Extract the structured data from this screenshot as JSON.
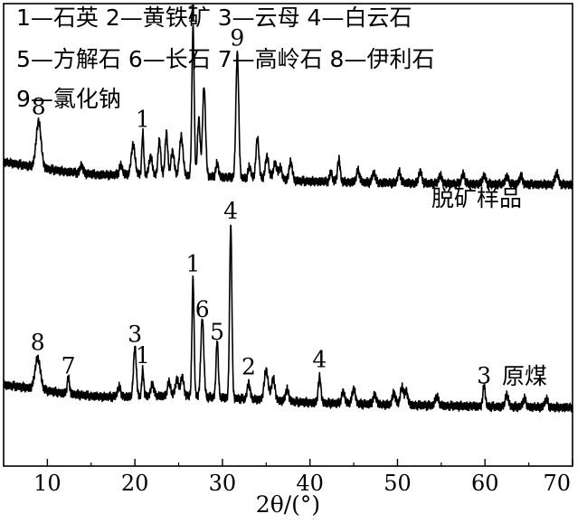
{
  "legend": {
    "lines": [
      "1—石英  2—黄铁矿  3—云母  4—白云石",
      "5—方解石  6—长石  7—高岭石  8—伊利石",
      "9—氯化钠"
    ]
  },
  "chart_data": {
    "type": "line",
    "xlabel": "2θ/(°)",
    "xlim": [
      5,
      70
    ],
    "xticks": [
      10,
      20,
      30,
      40,
      50,
      60,
      70
    ],
    "grid": false,
    "y_axis_ticks_labeled": false,
    "series": [
      {
        "name": "脱矿样品",
        "baseline": [
          [
            5,
            0.58
          ],
          [
            8,
            0.5
          ],
          [
            12,
            0.4
          ],
          [
            16,
            0.34
          ],
          [
            20,
            0.34
          ],
          [
            25,
            0.33
          ],
          [
            30,
            0.3
          ],
          [
            35,
            0.26
          ],
          [
            40,
            0.22
          ],
          [
            50,
            0.19
          ],
          [
            60,
            0.17
          ],
          [
            70,
            0.16
          ]
        ],
        "peaks": [
          {
            "x": 9.0,
            "h": 0.85,
            "w": 0.28,
            "label": "8"
          },
          {
            "x": 13.9,
            "h": 0.16,
            "w": 0.15
          },
          {
            "x": 18.4,
            "h": 0.18,
            "w": 0.18
          },
          {
            "x": 19.8,
            "h": 0.55,
            "w": 0.22
          },
          {
            "x": 20.9,
            "h": 0.78,
            "w": 0.11,
            "label": "1"
          },
          {
            "x": 21.8,
            "h": 0.35,
            "w": 0.18
          },
          {
            "x": 22.8,
            "h": 0.65,
            "w": 0.15
          },
          {
            "x": 23.6,
            "h": 0.78,
            "w": 0.15
          },
          {
            "x": 24.3,
            "h": 0.45,
            "w": 0.18
          },
          {
            "x": 25.3,
            "h": 0.72,
            "w": 0.2
          },
          {
            "x": 26.64,
            "h": 2.75,
            "w": 0.13,
            "label": "1"
          },
          {
            "x": 27.3,
            "h": 1.05,
            "w": 0.15
          },
          {
            "x": 27.9,
            "h": 1.65,
            "w": 0.17
          },
          {
            "x": 29.4,
            "h": 0.25,
            "w": 0.15
          },
          {
            "x": 31.7,
            "h": 2.3,
            "w": 0.16,
            "label": "9"
          },
          {
            "x": 33.1,
            "h": 0.22,
            "w": 0.16
          },
          {
            "x": 34.0,
            "h": 0.75,
            "w": 0.17
          },
          {
            "x": 35.1,
            "h": 0.42,
            "w": 0.2
          },
          {
            "x": 36.0,
            "h": 0.3,
            "w": 0.2
          },
          {
            "x": 36.6,
            "h": 0.22,
            "w": 0.2
          },
          {
            "x": 37.8,
            "h": 0.35,
            "w": 0.18
          },
          {
            "x": 42.4,
            "h": 0.18,
            "w": 0.15
          },
          {
            "x": 43.3,
            "h": 0.42,
            "w": 0.15
          },
          {
            "x": 45.5,
            "h": 0.22,
            "w": 0.18
          },
          {
            "x": 47.3,
            "h": 0.18,
            "w": 0.18
          },
          {
            "x": 50.2,
            "h": 0.2,
            "w": 0.18
          },
          {
            "x": 52.6,
            "h": 0.22,
            "w": 0.18
          },
          {
            "x": 54.9,
            "h": 0.15,
            "w": 0.18
          },
          {
            "x": 57.5,
            "h": 0.18,
            "w": 0.18
          },
          {
            "x": 59.9,
            "h": 0.16,
            "w": 0.18
          },
          {
            "x": 62.5,
            "h": 0.15,
            "w": 0.18
          },
          {
            "x": 64.1,
            "h": 0.15,
            "w": 0.18
          },
          {
            "x": 68.2,
            "h": 0.22,
            "w": 0.18
          }
        ]
      },
      {
        "name": "原煤",
        "baseline": [
          [
            5,
            0.0
          ],
          [
            8,
            -0.06
          ],
          [
            12,
            -0.16
          ],
          [
            16,
            -0.22
          ],
          [
            20,
            -0.22
          ],
          [
            25,
            -0.2
          ],
          [
            30,
            -0.24
          ],
          [
            35,
            -0.28
          ],
          [
            40,
            -0.33
          ],
          [
            50,
            -0.37
          ],
          [
            60,
            -0.4
          ],
          [
            70,
            -0.42
          ]
        ],
        "peaks": [
          {
            "x": 8.9,
            "h": 0.58,
            "w": 0.3,
            "label": "8"
          },
          {
            "x": 12.4,
            "h": 0.3,
            "w": 0.13,
            "label": "7"
          },
          {
            "x": 18.2,
            "h": 0.18,
            "w": 0.18
          },
          {
            "x": 20.0,
            "h": 0.92,
            "w": 0.16,
            "label": "3"
          },
          {
            "x": 20.9,
            "h": 0.5,
            "w": 0.11,
            "label": "1"
          },
          {
            "x": 22.0,
            "h": 0.22,
            "w": 0.18
          },
          {
            "x": 23.9,
            "h": 0.25,
            "w": 0.18
          },
          {
            "x": 24.8,
            "h": 0.3,
            "w": 0.18
          },
          {
            "x": 25.4,
            "h": 0.35,
            "w": 0.18
          },
          {
            "x": 26.64,
            "h": 2.18,
            "w": 0.12,
            "label": "1"
          },
          {
            "x": 27.7,
            "h": 1.45,
            "w": 0.17,
            "label": "6"
          },
          {
            "x": 29.4,
            "h": 1.05,
            "w": 0.13,
            "label": "5"
          },
          {
            "x": 30.95,
            "h": 3.18,
            "w": 0.13,
            "label": "4"
          },
          {
            "x": 33.0,
            "h": 0.3,
            "w": 0.16,
            "label": "2"
          },
          {
            "x": 35.0,
            "h": 0.55,
            "w": 0.22
          },
          {
            "x": 35.8,
            "h": 0.4,
            "w": 0.2
          },
          {
            "x": 37.4,
            "h": 0.22,
            "w": 0.18
          },
          {
            "x": 41.1,
            "h": 0.48,
            "w": 0.15,
            "label": "4"
          },
          {
            "x": 43.8,
            "h": 0.22,
            "w": 0.18
          },
          {
            "x": 45.0,
            "h": 0.28,
            "w": 0.18
          },
          {
            "x": 47.4,
            "h": 0.18,
            "w": 0.18
          },
          {
            "x": 49.6,
            "h": 0.22,
            "w": 0.18
          },
          {
            "x": 50.5,
            "h": 0.32,
            "w": 0.18
          },
          {
            "x": 51.0,
            "h": 0.25,
            "w": 0.18
          },
          {
            "x": 54.5,
            "h": 0.18,
            "w": 0.18
          },
          {
            "x": 59.9,
            "h": 0.38,
            "w": 0.14,
            "label": "3"
          },
          {
            "x": 62.5,
            "h": 0.22,
            "w": 0.18
          },
          {
            "x": 64.5,
            "h": 0.15,
            "w": 0.18
          },
          {
            "x": 67.0,
            "h": 0.15,
            "w": 0.18
          }
        ]
      }
    ],
    "colors": {
      "line": "#000000",
      "background": "#ffffff"
    }
  }
}
